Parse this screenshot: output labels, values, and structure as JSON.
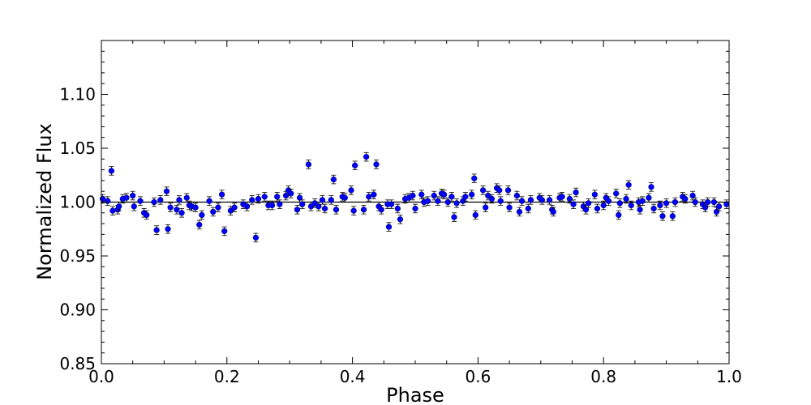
{
  "chart_data": {
    "type": "scatter",
    "title": "",
    "xlabel": "Phase",
    "ylabel": "Normalized Flux",
    "xlim": [
      0.0,
      1.0
    ],
    "ylim": [
      0.85,
      1.15
    ],
    "xticks": [
      "0.0",
      "0.2",
      "0.4",
      "0.6",
      "0.8",
      "1.0"
    ],
    "yticks": [
      "0.85",
      "0.90",
      "0.95",
      "1.00",
      "1.05",
      "1.10"
    ],
    "grid": false,
    "legend": "none",
    "marker_color": "#0000ff",
    "model_line": {
      "y": 1.0,
      "color": "#000000"
    },
    "error_bar": 0.004,
    "points": [
      [
        0.002,
        1.003
      ],
      [
        0.01,
        1.001
      ],
      [
        0.016,
        1.029
      ],
      [
        0.018,
        0.992
      ],
      [
        0.026,
        0.993
      ],
      [
        0.028,
        0.996
      ],
      [
        0.034,
        1.003
      ],
      [
        0.04,
        1.004
      ],
      [
        0.05,
        1.006
      ],
      [
        0.052,
        0.996
      ],
      [
        0.062,
        1.001
      ],
      [
        0.068,
        0.99
      ],
      [
        0.072,
        0.988
      ],
      [
        0.084,
        1.0
      ],
      [
        0.088,
        0.974
      ],
      [
        0.094,
        1.002
      ],
      [
        0.104,
        1.01
      ],
      [
        0.106,
        0.975
      ],
      [
        0.11,
        0.995
      ],
      [
        0.12,
        0.993
      ],
      [
        0.124,
        1.002
      ],
      [
        0.128,
        0.99
      ],
      [
        0.136,
        1.004
      ],
      [
        0.14,
        0.997
      ],
      [
        0.144,
        0.996
      ],
      [
        0.15,
        0.995
      ],
      [
        0.156,
        0.979
      ],
      [
        0.16,
        0.988
      ],
      [
        0.172,
        1.001
      ],
      [
        0.178,
        0.991
      ],
      [
        0.186,
        0.995
      ],
      [
        0.192,
        1.007
      ],
      [
        0.196,
        0.973
      ],
      [
        0.206,
        0.992
      ],
      [
        0.212,
        0.995
      ],
      [
        0.226,
        0.998
      ],
      [
        0.232,
        0.996
      ],
      [
        0.24,
        1.002
      ],
      [
        0.246,
        0.967
      ],
      [
        0.25,
        1.003
      ],
      [
        0.26,
        1.005
      ],
      [
        0.266,
        0.997
      ],
      [
        0.272,
        0.997
      ],
      [
        0.28,
        1.005
      ],
      [
        0.284,
        0.998
      ],
      [
        0.294,
        1.006
      ],
      [
        0.298,
        1.011
      ],
      [
        0.302,
        1.008
      ],
      [
        0.312,
        0.993
      ],
      [
        0.316,
        1.004
      ],
      [
        0.32,
        0.998
      ],
      [
        0.33,
        1.035
      ],
      [
        0.334,
        0.996
      ],
      [
        0.34,
        0.999
      ],
      [
        0.346,
        0.996
      ],
      [
        0.352,
        1.002
      ],
      [
        0.356,
        0.994
      ],
      [
        0.366,
        1.002
      ],
      [
        0.37,
        1.021
      ],
      [
        0.374,
        0.993
      ],
      [
        0.384,
        1.005
      ],
      [
        0.388,
        1.004
      ],
      [
        0.398,
        1.011
      ],
      [
        0.402,
        0.992
      ],
      [
        0.404,
        1.034
      ],
      [
        0.418,
        0.993
      ],
      [
        0.422,
        1.042
      ],
      [
        0.426,
        1.005
      ],
      [
        0.434,
        1.007
      ],
      [
        0.438,
        1.035
      ],
      [
        0.442,
        0.996
      ],
      [
        0.446,
        0.993
      ],
      [
        0.456,
        0.998
      ],
      [
        0.458,
        0.977
      ],
      [
        0.462,
        0.998
      ],
      [
        0.472,
        0.994
      ],
      [
        0.476,
        0.984
      ],
      [
        0.484,
        1.003
      ],
      [
        0.49,
        1.004
      ],
      [
        0.496,
        1.006
      ],
      [
        0.5,
        0.994
      ],
      [
        0.51,
        1.007
      ],
      [
        0.514,
        1.0
      ],
      [
        0.52,
        1.001
      ],
      [
        0.53,
        1.006
      ],
      [
        0.536,
        1.001
      ],
      [
        0.542,
        1.008
      ],
      [
        0.546,
        1.007
      ],
      [
        0.552,
        1.0
      ],
      [
        0.558,
        1.005
      ],
      [
        0.562,
        0.986
      ],
      [
        0.566,
        0.999
      ],
      [
        0.576,
        1.001
      ],
      [
        0.58,
        1.005
      ],
      [
        0.59,
        1.007
      ],
      [
        0.594,
        1.022
      ],
      [
        0.596,
        0.988
      ],
      [
        0.608,
        1.011
      ],
      [
        0.612,
        0.995
      ],
      [
        0.616,
        1.006
      ],
      [
        0.622,
        1.003
      ],
      [
        0.63,
        1.013
      ],
      [
        0.634,
        1.011
      ],
      [
        0.636,
        1.001
      ],
      [
        0.648,
        1.011
      ],
      [
        0.65,
        0.995
      ],
      [
        0.662,
        1.006
      ],
      [
        0.666,
        0.991
      ],
      [
        0.67,
        1.001
      ],
      [
        0.68,
        0.994
      ],
      [
        0.684,
        1.002
      ],
      [
        0.698,
        1.004
      ],
      [
        0.702,
        1.002
      ],
      [
        0.714,
        1.002
      ],
      [
        0.718,
        0.993
      ],
      [
        0.72,
        0.991
      ],
      [
        0.73,
        1.004
      ],
      [
        0.734,
        1.005
      ],
      [
        0.746,
        1.003
      ],
      [
        0.752,
        0.998
      ],
      [
        0.756,
        1.009
      ],
      [
        0.768,
        0.996
      ],
      [
        0.772,
        0.993
      ],
      [
        0.776,
        0.999
      ],
      [
        0.786,
        1.007
      ],
      [
        0.79,
        0.994
      ],
      [
        0.8,
        0.997
      ],
      [
        0.804,
        1.004
      ],
      [
        0.808,
        1.001
      ],
      [
        0.82,
        1.008
      ],
      [
        0.824,
        0.988
      ],
      [
        0.826,
        0.999
      ],
      [
        0.836,
        1.003
      ],
      [
        0.84,
        1.016
      ],
      [
        0.844,
        0.997
      ],
      [
        0.856,
        1.0
      ],
      [
        0.858,
        0.993
      ],
      [
        0.862,
        1.001
      ],
      [
        0.872,
        1.004
      ],
      [
        0.876,
        1.014
      ],
      [
        0.88,
        0.994
      ],
      [
        0.89,
        0.997
      ],
      [
        0.894,
        0.987
      ],
      [
        0.9,
        0.999
      ],
      [
        0.91,
        0.987
      ],
      [
        0.914,
        1.0
      ],
      [
        0.926,
        1.005
      ],
      [
        0.93,
        1.003
      ],
      [
        0.942,
        1.006
      ],
      [
        0.946,
        1.0
      ],
      [
        0.958,
        0.998
      ],
      [
        0.962,
        0.995
      ],
      [
        0.966,
        1.0
      ],
      [
        0.976,
        1.0
      ],
      [
        0.98,
        0.991
      ],
      [
        0.984,
        0.996
      ],
      [
        0.996,
        0.998
      ]
    ]
  }
}
